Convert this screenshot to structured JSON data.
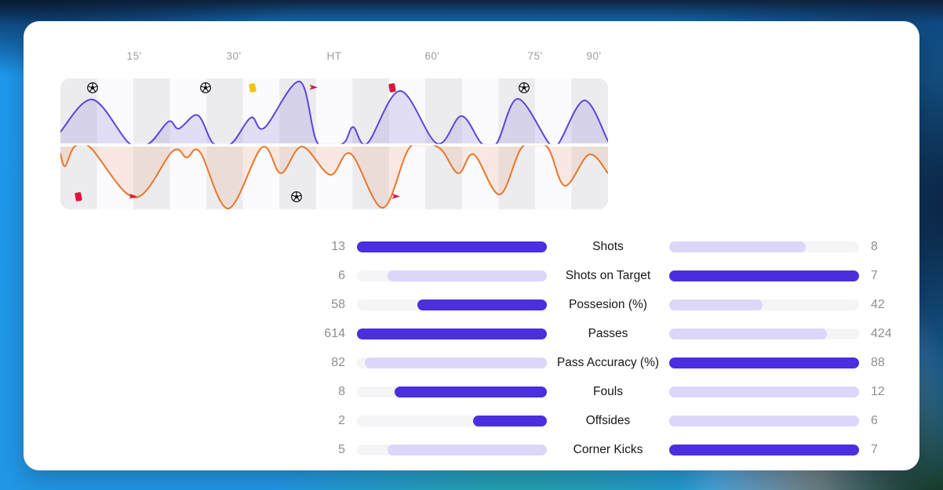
{
  "colors": {
    "bar_strong": "#4b2ede",
    "bar_soft": "#dcd6f8",
    "bar_track": "#f5f4f7",
    "home_line": "#5e45d9",
    "home_fill": "rgba(96,73,212,0.16)",
    "away_line": "#e8762c",
    "away_fill": "rgba(232,118,44,0.13)",
    "stripe_gray": "#ececee",
    "stripe_light": "#fbfafc",
    "yellow_card": "#f3c50f",
    "red_card": "#d8173c",
    "flag": "#d8173c"
  },
  "momentum": {
    "time_labels": [
      {
        "label": "15'",
        "x": 141
      },
      {
        "label": "30'",
        "x": 268
      },
      {
        "label": "HT",
        "x": 396
      },
      {
        "label": "60'",
        "x": 521
      },
      {
        "label": "75'",
        "x": 652
      },
      {
        "label": "90'",
        "x": 727
      }
    ],
    "stripe_count": 15,
    "events": {
      "home": [
        {
          "type": "goal",
          "x": 41
        },
        {
          "type": "goal",
          "x": 185
        },
        {
          "type": "yellow-card",
          "x": 245
        },
        {
          "type": "flag",
          "x": 323
        },
        {
          "type": "red-card",
          "x": 423
        },
        {
          "type": "goal",
          "x": 591
        }
      ],
      "away": [
        {
          "type": "red-card",
          "x": 23
        },
        {
          "type": "flag",
          "x": 93
        },
        {
          "type": "goal",
          "x": 301
        },
        {
          "type": "flag",
          "x": 428
        }
      ]
    }
  },
  "chart_data": [
    {
      "type": "area",
      "title": "Match momentum",
      "x_unit": "chart px (0-698 ~ 0-90+ min)",
      "legend_position": "none",
      "grid": "alternating vertical bands",
      "series": [
        {
          "name": "home momentum (top, violet)",
          "points": [
            [
              0,
              15
            ],
            [
              41,
              56
            ],
            [
              88,
              0
            ],
            [
              113,
              0
            ],
            [
              138,
              28
            ],
            [
              151,
              19
            ],
            [
              175,
              36
            ],
            [
              195,
              0
            ],
            [
              218,
              0
            ],
            [
              243,
              33
            ],
            [
              260,
              20
            ],
            [
              305,
              79
            ],
            [
              328,
              0
            ],
            [
              360,
              0
            ],
            [
              373,
              21
            ],
            [
              391,
              0
            ],
            [
              433,
              67
            ],
            [
              480,
              0
            ],
            [
              511,
              35
            ],
            [
              537,
              0
            ],
            [
              556,
              0
            ],
            [
              583,
              57
            ],
            [
              623,
              0
            ],
            [
              635,
              0
            ],
            [
              668,
              55
            ],
            [
              698,
              3
            ]
          ]
        },
        {
          "name": "away momentum (bottom, orange)",
          "points": [
            [
              0,
              9
            ],
            [
              6,
              25
            ],
            [
              18,
              0
            ],
            [
              38,
              1
            ],
            [
              95,
              65
            ],
            [
              143,
              6
            ],
            [
              161,
              14
            ],
            [
              178,
              7
            ],
            [
              214,
              79
            ],
            [
              257,
              1
            ],
            [
              281,
              34
            ],
            [
              308,
              0
            ],
            [
              344,
              36
            ],
            [
              370,
              9
            ],
            [
              411,
              78
            ],
            [
              446,
              0
            ],
            [
              482,
              1
            ],
            [
              507,
              34
            ],
            [
              527,
              10
            ],
            [
              560,
              61
            ],
            [
              589,
              0
            ],
            [
              620,
              0
            ],
            [
              643,
              50
            ],
            [
              674,
              10
            ],
            [
              698,
              34
            ]
          ]
        }
      ]
    },
    {
      "type": "table",
      "title": "Match stats comparison",
      "columns": [
        "home_value",
        "stat",
        "away_value"
      ],
      "rows": [
        {
          "label": "Shots",
          "home": 13,
          "away": 8,
          "home_strong": true,
          "away_strong": false,
          "home_fill": 1.0,
          "away_fill": 0.72
        },
        {
          "label": "Shots on Target",
          "home": 6,
          "away": 7,
          "home_strong": false,
          "away_strong": true,
          "home_fill": 0.84,
          "away_fill": 1.0
        },
        {
          "label": "Possesion (%)",
          "home": 58,
          "away": 42,
          "home_strong": true,
          "away_strong": false,
          "home_fill": 0.68,
          "away_fill": 0.49
        },
        {
          "label": "Passes",
          "home": 614,
          "away": 424,
          "home_strong": true,
          "away_strong": false,
          "home_fill": 1.0,
          "away_fill": 0.83
        },
        {
          "label": "Pass Accuracy (%)",
          "home": 82,
          "away": 88,
          "home_strong": false,
          "away_strong": true,
          "home_fill": 0.96,
          "away_fill": 1.0
        },
        {
          "label": "Fouls",
          "home": 8,
          "away": 12,
          "home_strong": true,
          "away_strong": false,
          "home_fill": 0.8,
          "away_fill": 1.0
        },
        {
          "label": "Offsides",
          "home": 2,
          "away": 6,
          "home_strong": true,
          "away_strong": false,
          "home_fill": 0.39,
          "away_fill": 1.0
        },
        {
          "label": "Corner Kicks",
          "home": 5,
          "away": 7,
          "home_strong": false,
          "away_strong": true,
          "home_fill": 0.84,
          "away_fill": 1.0
        }
      ]
    }
  ]
}
